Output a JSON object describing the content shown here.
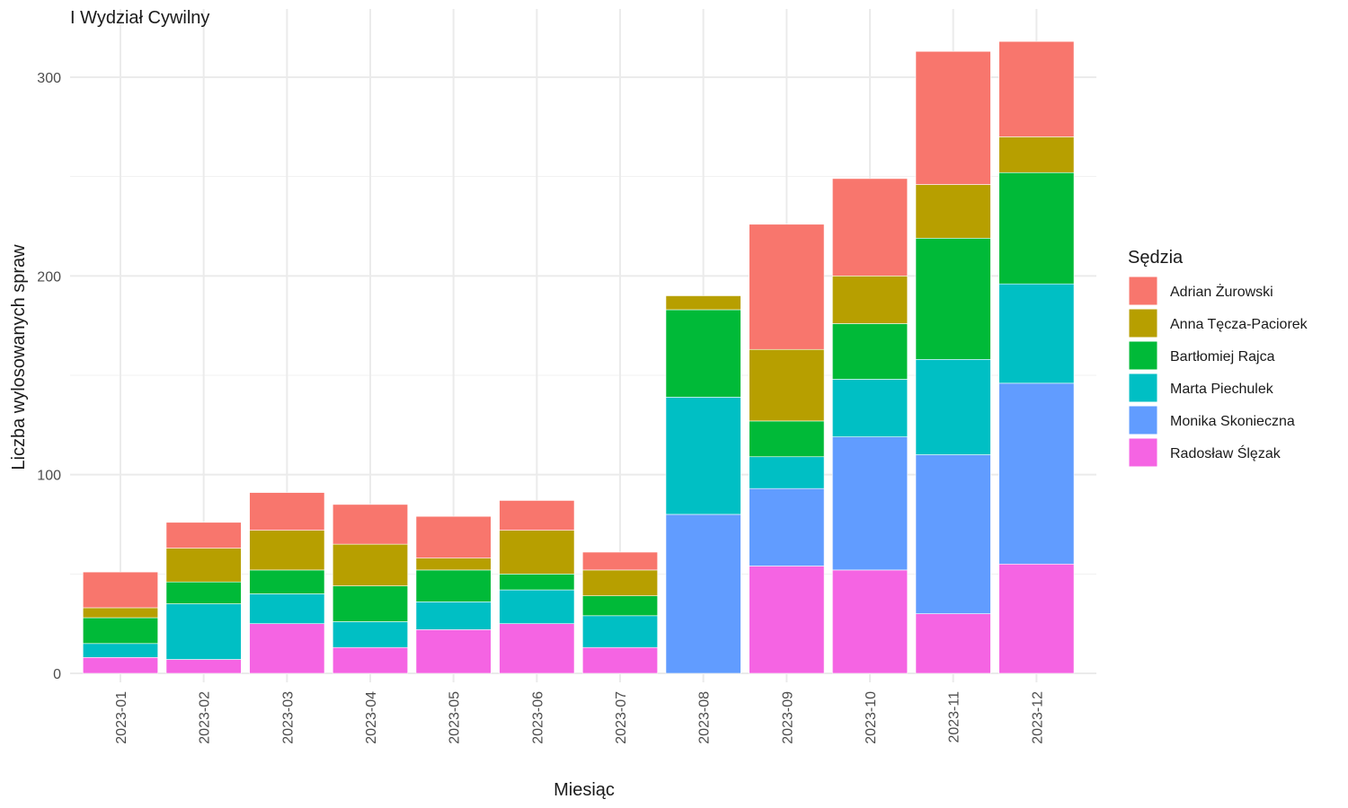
{
  "chart_data": {
    "type": "bar",
    "stacked": true,
    "title": "I Wydział Cywilny",
    "xlabel": "Miesiąc",
    "ylabel": "Liczba wylosowanych spraw",
    "ylim": [
      0,
      330
    ],
    "yticks": [
      0,
      100,
      200,
      300
    ],
    "grid": true,
    "legend_title": "Sędzia",
    "legend_position": "right",
    "categories": [
      "2023-01",
      "2023-02",
      "2023-03",
      "2023-04",
      "2023-05",
      "2023-06",
      "2023-07",
      "2023-08",
      "2023-09",
      "2023-10",
      "2023-11",
      "2023-12"
    ],
    "series": [
      {
        "name": "Radosław Ślęzak",
        "color": "#F564E3",
        "values": [
          8,
          7,
          25,
          13,
          22,
          25,
          13,
          0,
          54,
          52,
          30,
          55
        ]
      },
      {
        "name": "Monika Skonieczna",
        "color": "#619CFF",
        "values": [
          0,
          0,
          0,
          0,
          0,
          0,
          0,
          80,
          39,
          67,
          80,
          91
        ]
      },
      {
        "name": "Marta Piechulek",
        "color": "#00BFC4",
        "values": [
          7,
          28,
          15,
          13,
          14,
          17,
          16,
          59,
          16,
          29,
          48,
          50
        ]
      },
      {
        "name": "Bartłomiej Rajca",
        "color": "#00BA38",
        "values": [
          13,
          11,
          12,
          18,
          16,
          8,
          10,
          44,
          18,
          28,
          61,
          56
        ]
      },
      {
        "name": "Anna Tęcza-Paciorek",
        "color": "#B79F00",
        "values": [
          5,
          17,
          20,
          21,
          6,
          22,
          13,
          7,
          36,
          24,
          27,
          18
        ]
      },
      {
        "name": "Adrian Żurowski",
        "color": "#F8766D",
        "values": [
          18,
          13,
          19,
          20,
          21,
          15,
          9,
          0,
          63,
          49,
          67,
          48
        ]
      }
    ],
    "legend_order": [
      "Adrian Żurowski",
      "Anna Tęcza-Paciorek",
      "Bartłomiej Rajca",
      "Marta Piechulek",
      "Monika Skonieczna",
      "Radosław Ślęzak"
    ]
  }
}
